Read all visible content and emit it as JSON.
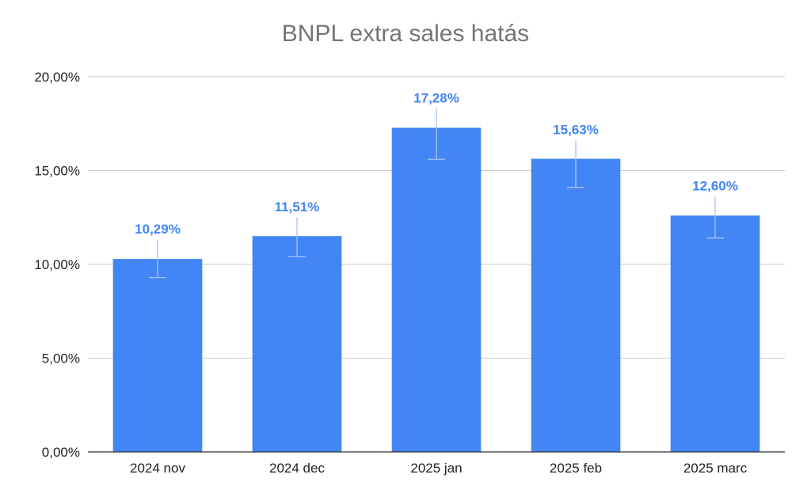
{
  "chart_data": {
    "type": "bar",
    "title": "BNPL extra sales hatás",
    "xlabel": "",
    "ylabel": "",
    "categories": [
      "2024 nov",
      "2024 dec",
      "2025 jan",
      "2025 feb",
      "2025 marc"
    ],
    "values": [
      10.29,
      11.51,
      17.28,
      15.63,
      12.6
    ],
    "data_labels": [
      "10,29%",
      "11,51%",
      "17,28%",
      "15,63%",
      "12,60%"
    ],
    "error_bars": [
      {
        "low": 9.3,
        "high": 11.3
      },
      {
        "low": 10.4,
        "high": 12.5
      },
      {
        "low": 15.6,
        "high": 18.3
      },
      {
        "low": 14.1,
        "high": 16.6
      },
      {
        "low": 11.4,
        "high": 13.6
      }
    ],
    "ylim": [
      0,
      20
    ],
    "yticks": [
      0,
      5,
      10,
      15,
      20
    ],
    "ytick_labels": [
      "0,00%",
      "5,00%",
      "10,00%",
      "15,00%",
      "20,00%"
    ],
    "grid": true,
    "legend": "none",
    "colors": {
      "bar": "#4285f4",
      "data_label": "#4285f4",
      "grid": "#cccccc",
      "axis": "#333333",
      "error_bar": "#a7c4f7",
      "title": "#757575"
    }
  }
}
